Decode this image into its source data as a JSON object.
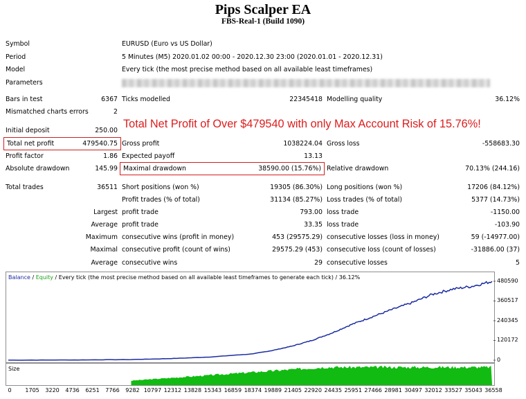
{
  "header": {
    "title": "Pips Scalper EA",
    "subtitle": "FBS-Real-1 (Build 1090)"
  },
  "info": {
    "symbol_label": "Symbol",
    "symbol": "EURUSD (Euro vs US Dollar)",
    "period_label": "Period",
    "period": "5 Minutes (M5) 2020.01.02 00:00 - 2020.12.30 23:00 (2020.01.01 - 2020.12.31)",
    "model_label": "Model",
    "model": "Every tick (the most precise method based on all available least timeframes)",
    "parameters_label": "Parameters"
  },
  "stats": {
    "bars_label": "Bars in test",
    "bars": "6367",
    "ticks_label": "Ticks modelled",
    "ticks": "22345418",
    "quality_label": "Modelling quality",
    "quality": "36.12%",
    "mismatch_label": "Mismatched charts errors",
    "mismatch": "2",
    "deposit_label": "Initial deposit",
    "deposit": "250.00",
    "net_label": "Total net profit",
    "net": "479540.75",
    "gross_profit_label": "Gross profit",
    "gross_profit": "1038224.04",
    "gross_loss_label": "Gross loss",
    "gross_loss": "-558683.30",
    "pf_label": "Profit factor",
    "pf": "1.86",
    "payoff_label": "Expected payoff",
    "payoff": "13.13",
    "abs_dd_label": "Absolute drawdown",
    "abs_dd": "145.99",
    "max_dd_label": "Maximal drawdown",
    "max_dd": "38590.00 (15.76%)",
    "rel_dd_label": "Relative drawdown",
    "rel_dd": "70.13% (244.16)",
    "trades_label": "Total trades",
    "trades": "36511",
    "short_label": "Short positions (won %)",
    "short": "19305 (86.30%)",
    "long_label": "Long positions (won %)",
    "long": "17206 (84.12%)",
    "profit_trades_label": "Profit trades (% of total)",
    "profit_trades": "31134 (85.27%)",
    "loss_trades_label": "Loss trades (% of total)",
    "loss_trades": "5377 (14.73%)",
    "largest_label": "Largest",
    "largest_profit_label": "profit trade",
    "largest_profit": "793.00",
    "largest_loss_label": "loss trade",
    "largest_loss": "-1150.00",
    "average_label": "Average",
    "average_profit_label": "profit trade",
    "average_profit": "33.35",
    "average_loss_label": "loss trade",
    "average_loss": "-103.90",
    "maximum_label": "Maximum",
    "max_wins_label": "consecutive wins (profit in money)",
    "max_wins": "453 (29575.29)",
    "max_losses_label": "consecutive losses (loss in money)",
    "max_losses": "59 (-14977.00)",
    "maximal_label": "Maximal",
    "maximal_profit_label": "consecutive profit (count of wins)",
    "maximal_profit": "29575.29 (453)",
    "maximal_loss_label": "consecutive loss (count of losses)",
    "maximal_loss": "-31886.00 (37)",
    "avg_cons_label": "Average",
    "avg_wins_label": "consecutive wins",
    "avg_wins": "29",
    "avg_losses_label": "consecutive losses",
    "avg_losses": "5"
  },
  "headline": "Total Net Profit of Over $479540 with only Max Account Risk of 15.76%!",
  "chart_legend": {
    "balance": "Balance",
    "equity": "Equity",
    "rest": " / Every tick (the most precise method based on all available least timeframes to generate each tick) / 36.12%"
  },
  "colors": {
    "balance": "#1a2ba0",
    "equity": "#1aa01a",
    "highlight": "#d21e1e",
    "volume": "#12bb12"
  },
  "chart_data": {
    "type": "line",
    "yticks": [
      "480590",
      "360517",
      "240345",
      "120172",
      "0"
    ],
    "xticks": [
      "0",
      "1705",
      "3220",
      "4736",
      "6251",
      "7766",
      "9282",
      "10797",
      "12312",
      "13828",
      "15343",
      "16859",
      "18374",
      "19889",
      "21405",
      "22920",
      "24435",
      "25951",
      "27466",
      "28981",
      "30497",
      "32012",
      "33527",
      "35043",
      "36558"
    ],
    "ylim": [
      0,
      480590
    ],
    "xlim": [
      0,
      36558
    ],
    "series": [
      {
        "name": "Balance",
        "x": [
          0,
          5000,
          9282,
          12312,
          15343,
          18374,
          19889,
          21405,
          22920,
          24435,
          25951,
          27466,
          28981,
          30497,
          32012,
          33527,
          35043,
          36558
        ],
        "y": [
          250,
          1500,
          4000,
          10000,
          20000,
          38000,
          58000,
          85000,
          120000,
          165000,
          218000,
          263000,
          308000,
          350000,
          400000,
          432000,
          450000,
          479540
        ]
      }
    ],
    "volume_label": "Size"
  }
}
